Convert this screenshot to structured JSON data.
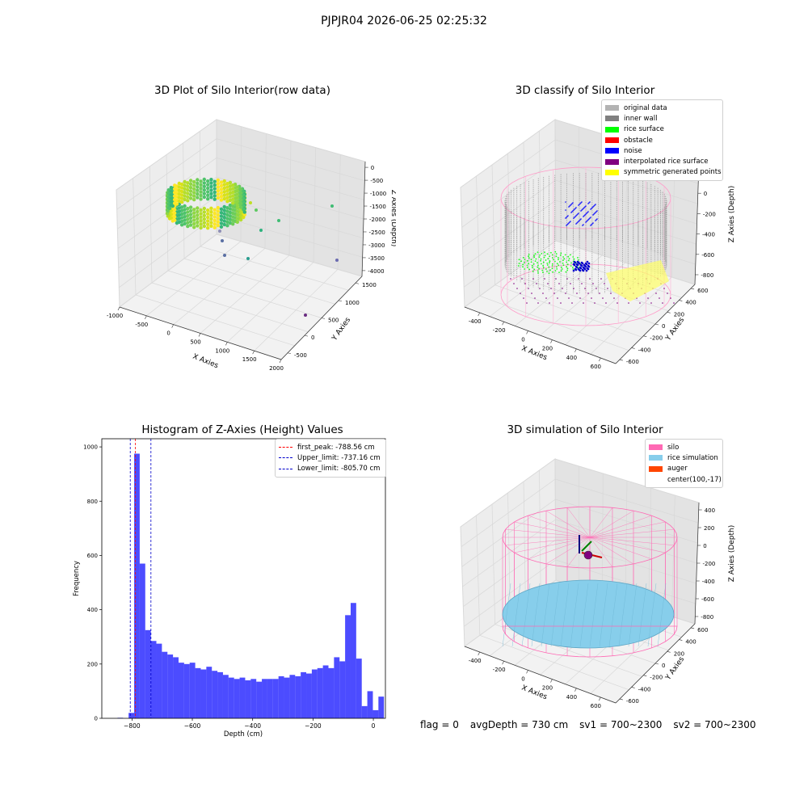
{
  "header": {
    "title": "PJPJR04 2026-06-25 02:25:32"
  },
  "footer": {
    "flag": "flag = 0",
    "avg_depth": "avgDepth = 730 cm",
    "sv1": "sv1 = 700~2300",
    "sv2": "sv2 = 700~2300"
  },
  "chart_data": [
    {
      "type": "scatter",
      "projection": "3d",
      "title": "3D Plot of Silo Interior(row data)",
      "xlabel": "X Axies",
      "ylabel": "Y Axies",
      "zlabel": "Z Axies (Depth)",
      "xticks": [
        "-1000",
        "-500",
        "0",
        "500",
        "1000",
        "1500",
        "2000"
      ],
      "yticks": [
        "-500",
        "0",
        "500",
        "1000",
        "1500"
      ],
      "zticks": [
        "0",
        "-500",
        "-1000",
        "-1500",
        "-2000",
        "-2500",
        "-3000",
        "-3500",
        "-4000"
      ],
      "colormap": "viridis",
      "grid": true
    },
    {
      "type": "scatter",
      "projection": "3d",
      "title": "3D classify of Silo Interior",
      "xlabel": "X Axies",
      "ylabel": "Y Axies",
      "zlabel": "Z Axies (Depth)",
      "xticks": [
        "-400",
        "-200",
        "0",
        "200",
        "400",
        "600"
      ],
      "yticks": [
        "-600",
        "-400",
        "-200",
        "0",
        "200",
        "400",
        "600"
      ],
      "zticks": [
        "200",
        "0",
        "-200",
        "-400",
        "-600",
        "-800"
      ],
      "legend_position": "top-right",
      "legend": [
        {
          "label": "original data",
          "color": "#b3b3b3"
        },
        {
          "label": "inner wall",
          "color": "#808080"
        },
        {
          "label": "rice surface",
          "color": "#00ff00"
        },
        {
          "label": "obstacle",
          "color": "#ff0000"
        },
        {
          "label": "noise",
          "color": "#0000ff"
        },
        {
          "label": "interpolated rice surface",
          "color": "#800080"
        },
        {
          "label": "symmetric generated points",
          "color": "#ffff00"
        }
      ],
      "grid": true
    },
    {
      "type": "bar",
      "title": "Histogram of Z-Axies (Height) Values",
      "xlabel": "Depth (cm)",
      "ylabel": "Frequency",
      "xlim": [
        -900,
        40
      ],
      "ylim": [
        0,
        1030
      ],
      "xticks": [
        -800,
        -600,
        -400,
        -200,
        0
      ],
      "yticks": [
        0,
        200,
        400,
        600,
        800,
        1000
      ],
      "bin_width": 18.4,
      "bin_start": -848,
      "values": [
        2,
        0,
        20,
        975,
        570,
        325,
        285,
        275,
        245,
        235,
        225,
        205,
        200,
        205,
        185,
        180,
        190,
        175,
        170,
        160,
        150,
        145,
        150,
        140,
        145,
        135,
        145,
        145,
        145,
        155,
        150,
        160,
        155,
        170,
        165,
        180,
        185,
        195,
        185,
        225,
        210,
        380,
        425,
        220,
        45,
        100,
        30,
        80
      ],
      "bar_color": "#0000ff",
      "vlines": [
        {
          "label": "first_peak: -788.56 cm",
          "x": -788.56,
          "color": "#ff0000"
        },
        {
          "label": "Upper_limit: -737.16 cm",
          "x": -737.16,
          "color": "#0000cc"
        },
        {
          "label": "Lower_limit: -805.70 cm",
          "x": -805.7,
          "color": "#0000cc"
        }
      ],
      "legend_position": "top-right",
      "grid": false
    },
    {
      "type": "scatter",
      "projection": "3d",
      "title": "3D simulation of Silo Interior",
      "xlabel": "X Axies",
      "ylabel": "Y Axies",
      "zlabel": "Z Axies (Depth)",
      "xticks": [
        "-400",
        "-200",
        "0",
        "200",
        "400",
        "600"
      ],
      "yticks": [
        "-600",
        "-400",
        "-200",
        "0",
        "200",
        "400",
        "600"
      ],
      "zticks": [
        "400",
        "200",
        "0",
        "-200",
        "-400",
        "-600",
        "-800"
      ],
      "legend_position": "top-right",
      "legend": [
        {
          "label": "silo",
          "color": "#ff69b4"
        },
        {
          "label": "rice simulation",
          "color": "#87ceeb"
        },
        {
          "label": "auger",
          "color": "#ff4500"
        },
        {
          "label": "center(100,-17)",
          "color": ""
        }
      ],
      "grid": true
    }
  ]
}
